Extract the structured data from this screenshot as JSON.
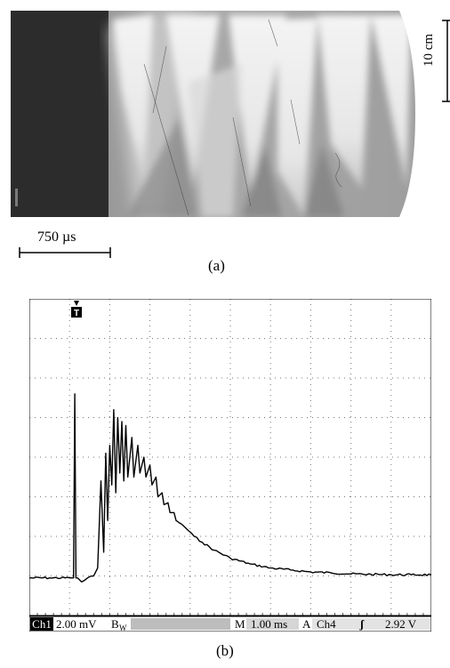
{
  "panel_a": {
    "scale_bar_length": "10 cm",
    "time_bar_label": "750 µs",
    "caption": "(a)"
  },
  "panel_b": {
    "caption": "(b)",
    "trigger_marker": "T",
    "status_bar": {
      "channel": "Ch1",
      "volts_per_div": "2.00 mV",
      "bandwidth_symbol": "B",
      "bandwidth_sub": "W",
      "timebase_prefix": "M",
      "timebase": "1.00 ms",
      "acq_mode": "A",
      "trigger_source": "Ch4",
      "trigger_slope_symbol": "ʃ",
      "trigger_level": "2.92 V"
    },
    "grid": {
      "x_divisions": 10,
      "y_divisions": 8,
      "grid_style": "dotted"
    },
    "trace_color": "#000000"
  },
  "chart_data": {
    "type": "line",
    "title": "",
    "xlabel": "",
    "ylabel": "",
    "x_unit": "div",
    "y_unit": "div",
    "xlim": [
      0,
      10
    ],
    "ylim": [
      0,
      8
    ],
    "series": [
      {
        "values_x": [
          0,
          0.5,
          1.0,
          1.1,
          1.13,
          1.16,
          1.2,
          1.3,
          1.45,
          1.6,
          1.7,
          1.78,
          1.85,
          1.9,
          1.95,
          2.0,
          2.05,
          2.1,
          2.15,
          2.2,
          2.25,
          2.3,
          2.35,
          2.4,
          2.45,
          2.55,
          2.6,
          2.7,
          2.75,
          2.85,
          2.9,
          3.0,
          3.05,
          3.15,
          3.2,
          3.3,
          3.35,
          3.45,
          3.5,
          3.6,
          3.65,
          3.8,
          3.9,
          4.1,
          4.3,
          4.6,
          5.0,
          5.5,
          6.0,
          6.5,
          7.0,
          7.5,
          8.0,
          8.5,
          9.0,
          9.5,
          10.0
        ],
        "values_y": [
          0.95,
          0.95,
          0.95,
          0.95,
          5.6,
          0.95,
          0.95,
          0.85,
          0.95,
          1.0,
          1.2,
          3.4,
          1.6,
          4.1,
          2.4,
          4.3,
          3.3,
          5.2,
          3.1,
          5.0,
          3.6,
          4.9,
          3.4,
          4.8,
          3.5,
          4.5,
          3.5,
          4.3,
          3.6,
          4.0,
          3.5,
          3.8,
          3.3,
          3.5,
          3.0,
          3.1,
          2.8,
          2.85,
          2.6,
          2.6,
          2.4,
          2.3,
          2.2,
          2.0,
          1.85,
          1.65,
          1.45,
          1.3,
          1.2,
          1.15,
          1.1,
          1.08,
          1.05,
          1.04,
          1.03,
          1.03,
          1.03
        ]
      }
    ]
  }
}
